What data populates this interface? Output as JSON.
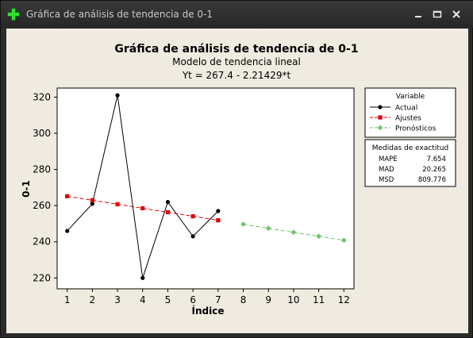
{
  "window": {
    "title": "Gráfica de análisis de tendencia de 0-1",
    "icons": [
      "plus-icon",
      "minimize-icon",
      "maximize-icon",
      "close-icon"
    ]
  },
  "chart_data": {
    "type": "line",
    "title": "Gráfica de análisis de tendencia de 0-1",
    "subtitle": "Modelo de tendencia lineal",
    "equation": "Yt = 267.4 - 2.21429*t",
    "xlabel": "Índice",
    "ylabel": "0-1",
    "xlim": [
      0.6,
      12.4
    ],
    "ylim": [
      214,
      325
    ],
    "x_ticks": [
      1,
      2,
      3,
      4,
      5,
      6,
      7,
      8,
      9,
      10,
      11,
      12
    ],
    "y_ticks": [
      220,
      240,
      260,
      280,
      300,
      320
    ],
    "grid": false,
    "legend_position": "right",
    "legend_title": "Variable",
    "series": [
      {
        "name": "Actual",
        "color": "#000000",
        "marker": "circle",
        "dash": "solid",
        "x": [
          1,
          2,
          3,
          4,
          5,
          6,
          7
        ],
        "y": [
          246,
          261,
          321,
          220,
          262,
          243,
          257
        ]
      },
      {
        "name": "Ajustes",
        "color": "#e00000",
        "marker": "square",
        "dash": "dashed",
        "x": [
          1,
          2,
          3,
          4,
          5,
          6,
          7
        ],
        "y": [
          265.19,
          262.97,
          260.76,
          258.54,
          256.33,
          254.11,
          251.9
        ]
      },
      {
        "name": "Pronósticos",
        "color": "#6cc46c",
        "marker": "diamond",
        "dash": "dashed",
        "x": [
          8,
          9,
          10,
          11,
          12
        ],
        "y": [
          249.69,
          247.47,
          245.26,
          243.04,
          240.83
        ]
      }
    ],
    "accuracy": {
      "title": "Medidas de exactitud",
      "rows": [
        {
          "label": "MAPE",
          "value": "7.654"
        },
        {
          "label": "MAD",
          "value": "20.265"
        },
        {
          "label": "MSD",
          "value": "809.776"
        }
      ]
    }
  }
}
